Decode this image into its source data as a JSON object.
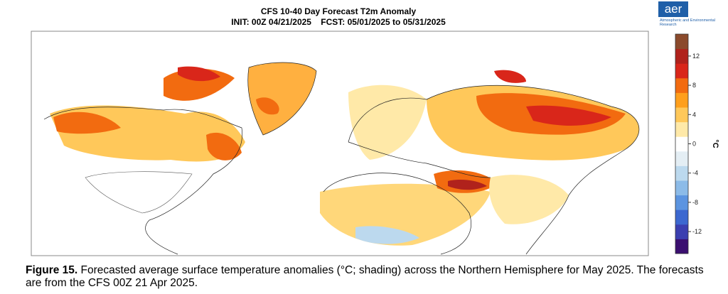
{
  "header": {
    "title": "CFS 10-40 Day Forecast T2m Anomaly",
    "subtitle": "INIT: 00Z 04/21/2025    FCST: 05/01/2025 to 05/31/2025"
  },
  "logo": {
    "mark": "aer",
    "text": "Atmospheric and Environmental Research"
  },
  "colorbar": {
    "lim": [
      -15,
      15
    ],
    "ticks": [
      12,
      8,
      4,
      0,
      -4,
      -8,
      -12
    ],
    "label": "°C",
    "colors": [
      "#3b0f70",
      "#3b3fb0",
      "#3c68d0",
      "#5c94e0",
      "#8cbbe8",
      "#bcd9ee",
      "#e4eef4",
      "#ffffff",
      "#ffe9a8",
      "#ffc85a",
      "#ff9f1c",
      "#f26b10",
      "#d9261a",
      "#b0221c",
      "#8b4a2c"
    ]
  },
  "caption": {
    "label": "Figure 15.",
    "text": " Forecasted average surface temperature anomalies (°C; shading) across the Northern Hemisphere for May 2025. The forecasts are from the CFS 00Z 21 Apr 2025."
  }
}
